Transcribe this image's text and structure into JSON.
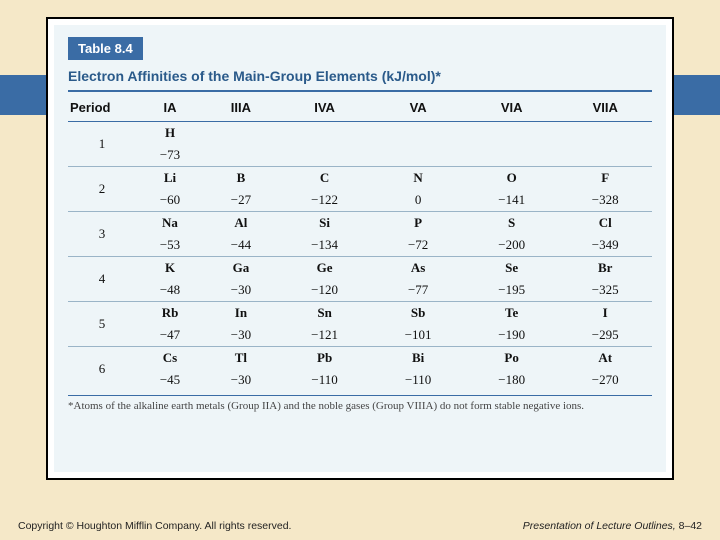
{
  "palette": {
    "page_bg": "#f5e8c8",
    "accent_blue": "#3a6ca5",
    "panel_bg": "#eef5f8",
    "frame_border": "#000000",
    "title_blue": "#2a5a8a",
    "row_rule": "#9ab4c7",
    "text": "#111111"
  },
  "typography": {
    "badge_fontsize": 13,
    "title_fontsize": 14,
    "table_fontsize": 13,
    "footnote_fontsize": 11,
    "footer_fontsize": 10.5
  },
  "table": {
    "type": "table",
    "badge": "Table 8.4",
    "title": "Electron Affinities of the Main-Group Elements (kJ/mol)*",
    "columns": [
      "Period",
      "IA",
      "IIIA",
      "IVA",
      "VA",
      "VIA",
      "VIIA"
    ],
    "periods": [
      {
        "n": "1",
        "elems": [
          "H",
          "",
          "",
          "",
          "",
          ""
        ],
        "vals": [
          "−73",
          "",
          "",
          "",
          "",
          ""
        ]
      },
      {
        "n": "2",
        "elems": [
          "Li",
          "B",
          "C",
          "N",
          "O",
          "F"
        ],
        "vals": [
          "−60",
          "−27",
          "−122",
          "0",
          "−141",
          "−328"
        ]
      },
      {
        "n": "3",
        "elems": [
          "Na",
          "Al",
          "Si",
          "P",
          "S",
          "Cl"
        ],
        "vals": [
          "−53",
          "−44",
          "−134",
          "−72",
          "−200",
          "−349"
        ]
      },
      {
        "n": "4",
        "elems": [
          "K",
          "Ga",
          "Ge",
          "As",
          "Se",
          "Br"
        ],
        "vals": [
          "−48",
          "−30",
          "−120",
          "−77",
          "−195",
          "−325"
        ]
      },
      {
        "n": "5",
        "elems": [
          "Rb",
          "In",
          "Sn",
          "Sb",
          "Te",
          "I"
        ],
        "vals": [
          "−47",
          "−30",
          "−121",
          "−101",
          "−190",
          "−295"
        ]
      },
      {
        "n": "6",
        "elems": [
          "Cs",
          "Tl",
          "Pb",
          "Bi",
          "Po",
          "At"
        ],
        "vals": [
          "−45",
          "−30",
          "−110",
          "−110",
          "−180",
          "−270"
        ]
      }
    ],
    "footnote": "*Atoms of the alkaline earth metals (Group IIA) and the noble gases (Group VIIIA) do not form stable negative ions."
  },
  "footer": {
    "left": "Copyright © Houghton Mifflin Company. All rights reserved.",
    "right_prefix": "Presentation of Lecture Outlines, ",
    "right_num": "8–42"
  }
}
